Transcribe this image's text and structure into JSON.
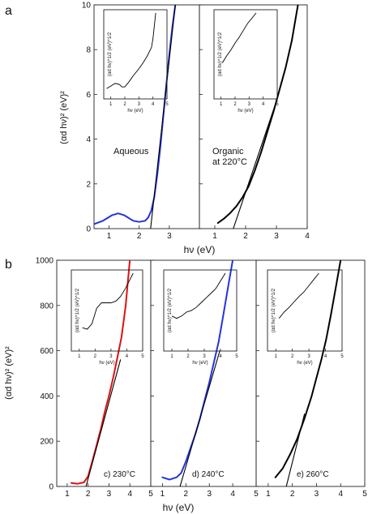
{
  "figure": {
    "panel_a_letter": "a",
    "panel_b_letter": "b",
    "a_ylabel": "(αd hν)² (eV)²",
    "a_xlabel": "hν (eV)",
    "b_ylabel": "(αd hν)² (eV)²",
    "b_xlabel": "hν (eV)",
    "inset_xlabel": "hν (eV)",
    "inset_ylabel": "(αd hν)^1/2 (eV)^1/2"
  },
  "chart_data": [
    {
      "id": "a1",
      "type": "line",
      "label": "Aqueous",
      "xlim": [
        0.5,
        4
      ],
      "ylim": [
        0,
        10
      ],
      "xticks": [
        1,
        2,
        3
      ],
      "yticks": [
        0,
        2,
        4,
        6,
        8,
        10
      ],
      "series": [
        {
          "color": "#2233dd",
          "x": [
            0.5,
            0.8,
            1.1,
            1.3,
            1.5,
            1.8,
            2.0,
            2.2,
            2.3,
            2.4,
            2.5,
            2.6,
            2.7,
            2.8,
            2.9,
            3.0,
            3.1,
            3.2
          ],
          "y": [
            0.2,
            0.35,
            0.6,
            0.68,
            0.6,
            0.35,
            0.3,
            0.35,
            0.5,
            0.8,
            1.4,
            2.4,
            3.6,
            5.0,
            6.4,
            7.8,
            9.0,
            10.0
          ]
        },
        {
          "color": "#000000",
          "x": [
            2.38,
            3.2
          ],
          "y": [
            0,
            10
          ]
        }
      ],
      "inset": {
        "xlim": [
          0.5,
          5
        ],
        "xticks": [
          1,
          2,
          3,
          4,
          5
        ],
        "x": [
          0.7,
          1.0,
          1.3,
          1.6,
          1.8,
          2.0,
          2.3,
          2.6,
          3.0,
          3.3,
          3.6,
          3.9,
          4.0,
          4.1,
          4.2
        ],
        "y": [
          0.12,
          0.15,
          0.18,
          0.17,
          0.14,
          0.14,
          0.2,
          0.27,
          0.35,
          0.42,
          0.5,
          0.6,
          0.7,
          0.85,
          1.0
        ]
      }
    },
    {
      "id": "a2",
      "type": "line",
      "label": "Organic\nat 220°C",
      "xlim": [
        0.5,
        4
      ],
      "ylim": [
        0,
        10
      ],
      "xticks": [
        1,
        2,
        3,
        4
      ],
      "yticks": [
        0,
        2,
        4,
        6,
        8,
        10
      ],
      "series": [
        {
          "color": "#000000",
          "x": [
            1.1,
            1.3,
            1.5,
            1.7,
            1.9,
            2.1,
            2.3,
            2.5,
            2.7,
            2.9,
            3.1,
            3.3,
            3.5,
            3.6,
            3.7
          ],
          "y": [
            0.25,
            0.45,
            0.7,
            1.0,
            1.4,
            1.9,
            2.6,
            3.4,
            4.3,
            5.2,
            6.2,
            7.2,
            8.4,
            9.2,
            10.0
          ]
        },
        {
          "color": "#000000",
          "x": [
            1.6,
            3.05
          ],
          "y": [
            0,
            5.9
          ]
        }
      ],
      "inset": {
        "xlim": [
          0.5,
          5
        ],
        "xticks": [
          1,
          2,
          3,
          4,
          5
        ],
        "x": [
          1.1,
          1.4,
          1.7,
          2.0,
          2.3,
          2.6,
          2.9,
          3.2,
          3.5
        ],
        "y": [
          0.42,
          0.5,
          0.57,
          0.65,
          0.72,
          0.8,
          0.88,
          0.94,
          1.0
        ]
      }
    },
    {
      "id": "b1",
      "type": "line",
      "label": "c) 230°C",
      "xlim": [
        0.5,
        5
      ],
      "ylim": [
        0,
        1000
      ],
      "xticks": [
        1,
        2,
        3,
        4,
        5
      ],
      "yticks": [
        0,
        200,
        400,
        600,
        800,
        1000
      ],
      "series": [
        {
          "color": "#dd1111",
          "x": [
            1.2,
            1.5,
            1.8,
            2.0,
            2.2,
            2.4,
            2.6,
            2.8,
            3.0,
            3.2,
            3.4,
            3.6,
            3.8,
            3.9,
            4.0
          ],
          "y": [
            15,
            12,
            18,
            45,
            110,
            180,
            250,
            330,
            400,
            480,
            570,
            660,
            800,
            900,
            1000
          ]
        },
        {
          "color": "#000000",
          "x": [
            1.9,
            3.55
          ],
          "y": [
            0,
            560
          ]
        }
      ],
      "inset": {
        "xlim": [
          0.5,
          5
        ],
        "xticks": [
          1,
          2,
          3,
          4,
          5
        ],
        "x": [
          1.2,
          1.5,
          1.8,
          2.1,
          2.4,
          2.7,
          3.0,
          3.3,
          3.6,
          3.9,
          4.2,
          4.4
        ],
        "y": [
          0.3,
          0.28,
          0.35,
          0.55,
          0.62,
          0.62,
          0.62,
          0.64,
          0.7,
          0.8,
          0.92,
          1.0
        ]
      }
    },
    {
      "id": "b2",
      "type": "line",
      "label": "d) 240°C",
      "xlim": [
        0.5,
        5
      ],
      "ylim": [
        0,
        1000
      ],
      "xticks": [
        1,
        2,
        3,
        4,
        5
      ],
      "yticks": [
        0,
        200,
        400,
        600,
        800,
        1000
      ],
      "series": [
        {
          "color": "#2233dd",
          "x": [
            1.0,
            1.3,
            1.6,
            1.8,
            2.0,
            2.2,
            2.4,
            2.6,
            2.8,
            3.0,
            3.2,
            3.4,
            3.6,
            3.8,
            4.0
          ],
          "y": [
            40,
            30,
            40,
            60,
            110,
            170,
            230,
            300,
            380,
            460,
            550,
            640,
            760,
            880,
            1000
          ]
        },
        {
          "color": "#000000",
          "x": [
            1.75,
            3.45
          ],
          "y": [
            0,
            600
          ]
        }
      ],
      "inset": {
        "xlim": [
          0.5,
          5
        ],
        "xticks": [
          1,
          2,
          3,
          4,
          5
        ],
        "x": [
          1.0,
          1.3,
          1.6,
          1.9,
          2.2,
          2.5,
          2.8,
          3.1,
          3.4,
          3.7,
          4.0,
          4.3
        ],
        "y": [
          0.45,
          0.42,
          0.45,
          0.5,
          0.52,
          0.56,
          0.62,
          0.68,
          0.74,
          0.8,
          0.9,
          1.0
        ]
      }
    },
    {
      "id": "b3",
      "type": "line",
      "label": "e) 260°C",
      "xlim": [
        0.5,
        5
      ],
      "ylim": [
        0,
        1000
      ],
      "xticks": [
        1,
        2,
        3,
        4,
        5
      ],
      "yticks": [
        0,
        200,
        400,
        600,
        800,
        1000
      ],
      "series": [
        {
          "color": "#000000",
          "x": [
            1.3,
            1.6,
            1.9,
            2.2,
            2.5,
            2.8,
            3.0,
            3.2,
            3.4,
            3.6,
            3.8,
            4.0
          ],
          "y": [
            40,
            80,
            140,
            210,
            300,
            400,
            480,
            560,
            650,
            760,
            880,
            1000
          ]
        },
        {
          "color": "#000000",
          "x": [
            1.75,
            2.5
          ],
          "y": [
            0,
            320
          ]
        }
      ],
      "inset": {
        "xlim": [
          0.5,
          5
        ],
        "xticks": [
          1,
          2,
          3,
          4,
          5
        ],
        "x": [
          1.2,
          1.5,
          1.8,
          2.1,
          2.4,
          2.7,
          3.0,
          3.3,
          3.6
        ],
        "y": [
          0.42,
          0.5,
          0.56,
          0.63,
          0.7,
          0.76,
          0.84,
          0.92,
          1.0
        ]
      }
    }
  ]
}
